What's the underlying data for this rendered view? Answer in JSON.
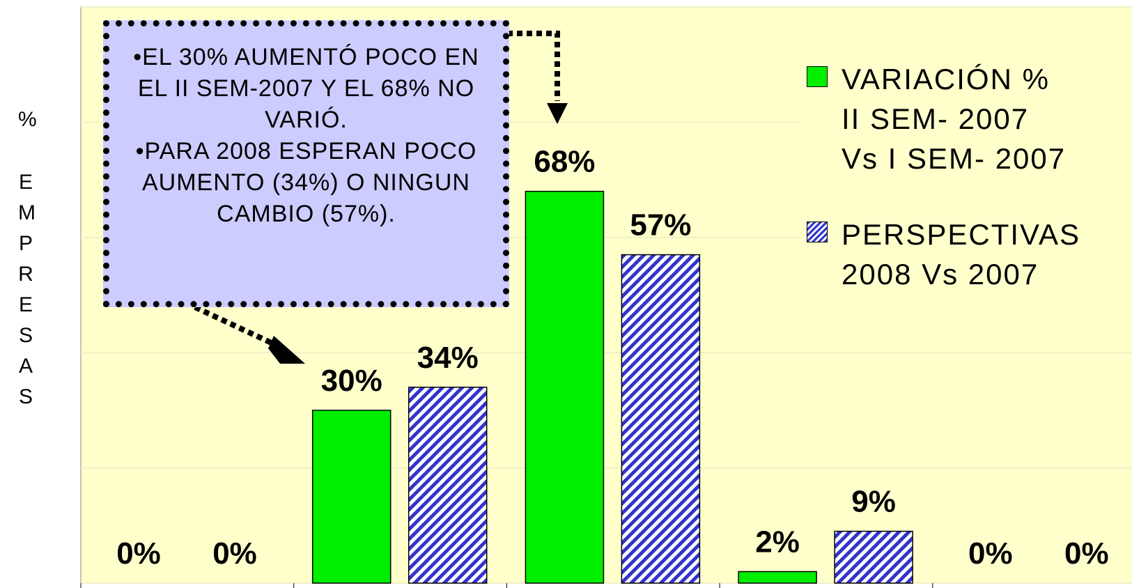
{
  "chart_data": {
    "type": "bar",
    "ylabel": [
      "%",
      "EMPRESAS"
    ],
    "categories": [
      null,
      null,
      null,
      null,
      null
    ],
    "series": [
      {
        "name": "VARIACIÓN %\nII SEM- 2007\nVs I SEM- 2007",
        "color": "#00ee00",
        "values": [
          0,
          30,
          68,
          2,
          0
        ],
        "value_labels": [
          "0%",
          "30%",
          "68%",
          "2%",
          "0%"
        ]
      },
      {
        "name": "PERSPECTIVAS\n2008 Vs 2007",
        "color": "#3333cc",
        "pattern": "hatch",
        "values": [
          0,
          34,
          57,
          9,
          0
        ],
        "value_labels": [
          "0%",
          "34%",
          "57%",
          "9%",
          "0%"
        ]
      }
    ],
    "ylim": [
      0,
      100
    ],
    "yticks": [
      0,
      20,
      40,
      60,
      80,
      100
    ],
    "grid": true,
    "legend": "top-right",
    "annotations": [
      "•EL 30% AUMENTÓ POCO EN EL II SEM-2007 Y EL 68% NO VARIÓ.",
      "•PARA 2008 ESPERAN POCO AUMENTO (34%) O NINGUN CAMBIO (57%)."
    ]
  }
}
